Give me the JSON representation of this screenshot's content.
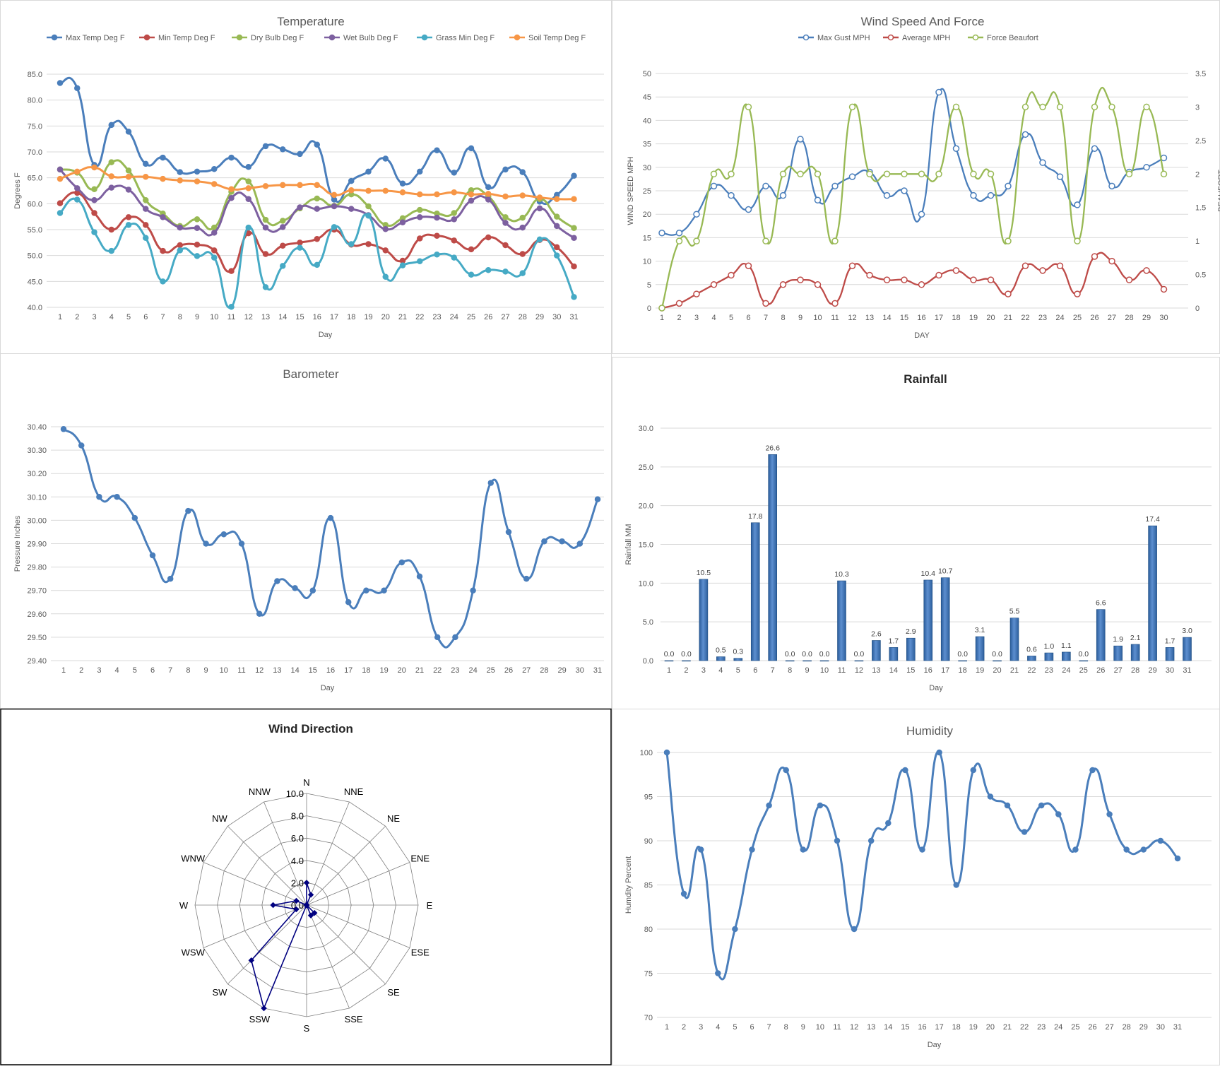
{
  "colors": {
    "blue": "#4a7ebb",
    "orange_red": "#be4b48",
    "green": "#98b954",
    "purple": "#7d60a0",
    "cyan": "#46aac5",
    "orange": "#f79646",
    "bar": "#4f81bd",
    "navy": "#000080"
  },
  "chart_data": [
    {
      "id": "temperature",
      "type": "line",
      "title": "Temperature",
      "xlabel": "Day",
      "ylabel": "Degrees F",
      "ylim": [
        40,
        85
      ],
      "yticks": [
        "40.0",
        "45.0",
        "50.0",
        "55.0",
        "60.0",
        "65.0",
        "70.0",
        "75.0",
        "80.0",
        "85.0"
      ],
      "x": [
        1,
        2,
        3,
        4,
        5,
        6,
        7,
        8,
        9,
        10,
        11,
        12,
        13,
        14,
        15,
        16,
        17,
        18,
        19,
        20,
        21,
        22,
        23,
        24,
        25,
        26,
        27,
        28,
        29,
        30,
        31
      ],
      "legend": "top",
      "series": [
        {
          "name": "Max Temp Deg F",
          "color": "#4a7ebb",
          "values": [
            83.3,
            82.3,
            67.5,
            75.2,
            73.9,
            67.7,
            68.9,
            66.1,
            66.2,
            66.7,
            68.9,
            67.1,
            71.1,
            70.5,
            69.6,
            71.4,
            60.8,
            64.4,
            66.2,
            68.7,
            63.9,
            66.2,
            70.3,
            66.0,
            70.7,
            63.2,
            66.6,
            66.1,
            60.4,
            61.7,
            65.4
          ]
        },
        {
          "name": "Min Temp Deg F",
          "color": "#be4b48",
          "values": [
            60.1,
            62.1,
            58.2,
            55.0,
            57.4,
            55.9,
            50.9,
            52.0,
            52.1,
            51.0,
            47.0,
            54.3,
            50.3,
            51.9,
            52.5,
            53.2,
            55.0,
            52.1,
            52.2,
            51.0,
            49.0,
            53.3,
            53.8,
            52.9,
            51.2,
            53.5,
            52.0,
            50.3,
            53.0,
            51.6,
            47.9
          ]
        },
        {
          "name": "Dry Bulb Deg F",
          "color": "#98b954",
          "values": [
            66.6,
            66.0,
            62.8,
            68.0,
            66.4,
            60.7,
            58.1,
            55.7,
            57.0,
            55.4,
            62.3,
            64.3,
            56.9,
            56.7,
            59.1,
            61.0,
            59.6,
            61.8,
            59.5,
            55.9,
            57.2,
            58.8,
            58.1,
            58.2,
            62.6,
            61.4,
            57.4,
            57.3,
            60.9,
            57.5,
            55.3
          ]
        },
        {
          "name": "Wet Bulb Deg F",
          "color": "#7d60a0",
          "values": [
            66.6,
            63.0,
            60.7,
            63.1,
            62.7,
            59.0,
            57.4,
            55.4,
            55.3,
            54.4,
            61.1,
            60.9,
            55.4,
            55.5,
            59.3,
            59.0,
            59.5,
            59.0,
            57.8,
            55.1,
            56.4,
            57.4,
            57.3,
            57.0,
            60.6,
            60.8,
            56.3,
            55.4,
            59.1,
            55.7,
            53.4
          ]
        },
        {
          "name": "Grass Min Deg F",
          "color": "#46aac5",
          "values": [
            58.2,
            60.8,
            54.5,
            50.9,
            55.9,
            53.4,
            45.0,
            51.0,
            49.9,
            49.6,
            40.1,
            55.4,
            43.9,
            48.0,
            51.5,
            48.2,
            55.5,
            52.2,
            57.7,
            45.9,
            48.1,
            48.9,
            50.2,
            49.6,
            46.3,
            47.2,
            46.9,
            46.6,
            53.1,
            50.0,
            42.0
          ]
        },
        {
          "name": "Soil Temp Deg F",
          "color": "#f79646",
          "values": [
            64.8,
            66.2,
            67.0,
            65.3,
            65.2,
            65.2,
            64.8,
            64.5,
            64.3,
            63.8,
            62.8,
            63.0,
            63.4,
            63.6,
            63.6,
            63.6,
            61.7,
            62.6,
            62.5,
            62.5,
            62.2,
            61.8,
            61.8,
            62.2,
            61.8,
            61.9,
            61.4,
            61.6,
            61.2,
            60.9,
            60.9
          ]
        }
      ]
    },
    {
      "id": "wind",
      "type": "line",
      "title": "Wind Speed And Force",
      "xlabel": "DAY",
      "ylabel": "WIND SPEED MPH",
      "y2label": "BEAUFORT",
      "ylim": [
        0,
        50
      ],
      "yticks": [
        "0",
        "5",
        "10",
        "15",
        "20",
        "25",
        "30",
        "35",
        "40",
        "45",
        "50"
      ],
      "y2lim": [
        0,
        3.5
      ],
      "y2ticks": [
        "0",
        "0.5",
        "1",
        "1.5",
        "2",
        "2.5",
        "3",
        "3.5"
      ],
      "x": [
        1,
        2,
        3,
        4,
        5,
        6,
        7,
        8,
        9,
        10,
        11,
        12,
        13,
        14,
        15,
        16,
        17,
        18,
        19,
        20,
        21,
        22,
        23,
        24,
        25,
        26,
        27,
        28,
        29,
        30
      ],
      "legend": "top",
      "series": [
        {
          "name": "Max Gust MPH",
          "color": "#4a7ebb",
          "axis": "left",
          "values": [
            16,
            16,
            20,
            26,
            24,
            21,
            26,
            24,
            36,
            23,
            26,
            28,
            29,
            24,
            25,
            20,
            46,
            34,
            24,
            24,
            26,
            37,
            31,
            28,
            22,
            34,
            26,
            29,
            30,
            32
          ]
        },
        {
          "name": "Average MPH",
          "color": "#be4b48",
          "axis": "left",
          "values": [
            0,
            1,
            3,
            5,
            7,
            9,
            1,
            5,
            6,
            5,
            1,
            9,
            7,
            6,
            6,
            5,
            7,
            8,
            6,
            6,
            3,
            9,
            8,
            9,
            3,
            11,
            10,
            6,
            8,
            4
          ]
        },
        {
          "name": "Force Beaufort",
          "color": "#98b954",
          "axis": "right",
          "values": [
            0,
            1,
            1,
            2,
            2,
            3,
            1,
            2,
            2,
            2,
            1,
            3,
            2,
            2,
            2,
            2,
            2,
            3,
            2,
            2,
            1,
            3,
            3,
            3,
            1,
            3,
            3,
            2,
            3,
            2
          ]
        }
      ]
    },
    {
      "id": "barometer",
      "type": "line",
      "title": "Barometer",
      "xlabel": "Day",
      "ylabel": "Pressure Inches",
      "ylim": [
        29.4,
        30.4
      ],
      "yticks": [
        "29.40",
        "29.50",
        "29.60",
        "29.70",
        "29.80",
        "29.90",
        "30.00",
        "30.10",
        "30.20",
        "30.30",
        "30.40"
      ],
      "x": [
        1,
        2,
        3,
        4,
        5,
        6,
        7,
        8,
        9,
        10,
        11,
        12,
        13,
        14,
        15,
        16,
        17,
        18,
        19,
        20,
        21,
        22,
        23,
        24,
        25,
        26,
        27,
        28,
        29,
        30,
        31
      ],
      "series": [
        {
          "color": "#4a7ebb",
          "values": [
            30.39,
            30.32,
            30.1,
            30.1,
            30.01,
            29.85,
            29.75,
            30.04,
            29.9,
            29.94,
            29.9,
            29.6,
            29.74,
            29.71,
            29.7,
            30.01,
            29.65,
            29.7,
            29.7,
            29.82,
            29.76,
            29.5,
            29.5,
            29.7,
            30.16,
            29.95,
            29.75,
            29.91,
            29.91,
            29.9,
            30.09
          ]
        }
      ]
    },
    {
      "id": "rainfall",
      "type": "bar",
      "title": "Rainfall",
      "xlabel": "Day",
      "ylabel": "Rainfall MM",
      "ylim": [
        0,
        30
      ],
      "yticks": [
        "0.0",
        "5.0",
        "10.0",
        "15.0",
        "20.0",
        "25.0",
        "30.0"
      ],
      "categories": [
        "1",
        "2",
        "3",
        "4",
        "5",
        "6",
        "7",
        "8",
        "9",
        "10",
        "11",
        "12",
        "13",
        "14",
        "15",
        "16",
        "17",
        "18",
        "19",
        "20",
        "21",
        "22",
        "23",
        "24",
        "25",
        "26",
        "27",
        "28",
        "29",
        "30",
        "31"
      ],
      "values": [
        0.0,
        0.0,
        10.5,
        0.5,
        0.3,
        17.8,
        26.6,
        0.0,
        0.0,
        0.0,
        10.3,
        0.0,
        2.6,
        1.7,
        2.9,
        10.4,
        10.7,
        0.0,
        3.1,
        0.0,
        5.5,
        0.6,
        1.0,
        1.1,
        0.0,
        6.6,
        1.9,
        2.1,
        17.4,
        1.7,
        3.0
      ],
      "labels": [
        "0.0",
        "0.0",
        "10.5",
        "0.5",
        "0.3",
        "17.8",
        "26.6",
        "0.0",
        "0.0",
        "0.0",
        "10.3",
        "0.0",
        "2.6",
        "1.7",
        "2.9",
        "10.4",
        "10.7",
        "0.0",
        "3.1",
        "0.0",
        "5.5",
        "0.6",
        "1.0",
        "1.1",
        "0.0",
        "6.6",
        "1.9",
        "2.1",
        "17.4",
        "1.7",
        "3.0"
      ]
    },
    {
      "id": "wind_direction",
      "type": "radar",
      "title": "Wind Direction",
      "rlim": [
        0,
        10
      ],
      "rticks": [
        "0.0",
        "2.0",
        "4.0",
        "6.0",
        "8.0",
        "10.0"
      ],
      "categories": [
        "N",
        "NNE",
        "NE",
        "ENE",
        "E",
        "ESE",
        "SE",
        "SSE",
        "S",
        "SSW",
        "SW",
        "WSW",
        "W",
        "WNW",
        "NW",
        "NNW"
      ],
      "values": [
        2,
        1,
        0,
        0,
        0,
        0,
        1,
        1,
        0,
        10,
        7,
        1,
        3,
        1,
        0,
        0
      ]
    },
    {
      "id": "humidity",
      "type": "line",
      "title": "Humidity",
      "xlabel": "Day",
      "ylabel": "Humdity Percent",
      "ylim": [
        70,
        100
      ],
      "yticks": [
        "70",
        "75",
        "80",
        "85",
        "90",
        "95",
        "100"
      ],
      "x": [
        1,
        2,
        3,
        4,
        5,
        6,
        7,
        8,
        9,
        10,
        11,
        12,
        13,
        14,
        15,
        16,
        17,
        18,
        19,
        20,
        21,
        22,
        23,
        24,
        25,
        26,
        27,
        28,
        29,
        30,
        31
      ],
      "series": [
        {
          "color": "#4a7ebb",
          "values": [
            100,
            84,
            89,
            75,
            80,
            89,
            94,
            98,
            89,
            94,
            90,
            80,
            90,
            92,
            98,
            89,
            100,
            85,
            98,
            95,
            94,
            91,
            94,
            93,
            89,
            98,
            93,
            89,
            89,
            90,
            88
          ]
        }
      ]
    }
  ]
}
